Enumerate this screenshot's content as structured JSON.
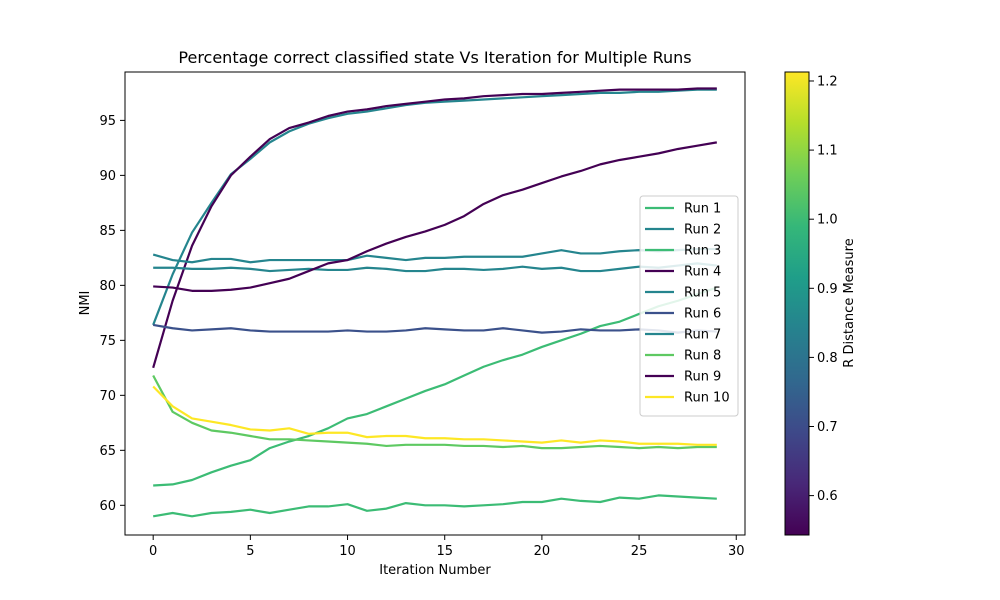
{
  "chart_data": {
    "type": "line",
    "title": "Percentage correct classified state Vs Iteration for Multiple Runs",
    "xlabel": "Iteration Number",
    "ylabel": "NMI",
    "xlim": [
      -1.45,
      30.45
    ],
    "ylim": [
      57.3,
      99.4
    ],
    "xticks": [
      "0",
      "5",
      "10",
      "15",
      "20",
      "25",
      "30"
    ],
    "yticks": [
      "60",
      "65",
      "70",
      "75",
      "80",
      "85",
      "90",
      "95"
    ],
    "grid": false,
    "legend_position": "center-right",
    "colorbar": {
      "label": "R Distance Measure",
      "min": 0.543,
      "max": 1.213,
      "ticks": [
        "0.6",
        "0.7",
        "0.8",
        "0.9",
        "1.0",
        "1.1",
        "1.2"
      ]
    },
    "x": [
      0,
      1,
      2,
      3,
      4,
      5,
      6,
      7,
      8,
      9,
      10,
      11,
      12,
      13,
      14,
      15,
      16,
      17,
      18,
      19,
      20,
      21,
      22,
      23,
      24,
      25,
      26,
      27,
      28,
      29
    ],
    "series": [
      {
        "name": "Run 1",
        "color": "#3cbc75",
        "values": [
          59.0,
          59.3,
          59.0,
          59.3,
          59.4,
          59.6,
          59.3,
          59.6,
          59.9,
          59.9,
          60.1,
          59.5,
          59.7,
          60.2,
          60.0,
          60.0,
          59.9,
          60.0,
          60.1,
          60.3,
          60.3,
          60.6,
          60.4,
          60.3,
          60.7,
          60.6,
          60.9,
          60.8,
          60.7,
          60.6
        ]
      },
      {
        "name": "Run 2",
        "color": "#25858e",
        "values": [
          76.4,
          81.0,
          84.8,
          87.5,
          90.1,
          91.5,
          93.0,
          94.0,
          94.7,
          95.2,
          95.6,
          95.8,
          96.1,
          96.4,
          96.6,
          96.7,
          96.8,
          96.9,
          97.0,
          97.1,
          97.2,
          97.3,
          97.4,
          97.5,
          97.5,
          97.6,
          97.6,
          97.7,
          97.8,
          97.8
        ]
      },
      {
        "name": "Run 3",
        "color": "#3cbc75",
        "values": [
          61.8,
          61.9,
          62.3,
          63.0,
          63.6,
          64.1,
          65.2,
          65.8,
          66.3,
          67.0,
          67.9,
          68.3,
          69.0,
          69.7,
          70.4,
          71.0,
          71.8,
          72.6,
          73.2,
          73.7,
          74.4,
          75.0,
          75.6,
          76.3,
          76.7,
          77.4,
          78.1,
          78.6,
          79.2,
          79.8
        ]
      },
      {
        "name": "Run 4",
        "color": "#440154",
        "values": [
          72.5,
          78.6,
          83.6,
          87.2,
          90.0,
          91.7,
          93.3,
          94.3,
          94.8,
          95.4,
          95.8,
          96.0,
          96.3,
          96.5,
          96.7,
          96.9,
          97.0,
          97.2,
          97.3,
          97.4,
          97.4,
          97.5,
          97.6,
          97.7,
          97.8,
          97.8,
          97.8,
          97.8,
          97.9,
          97.9
        ]
      },
      {
        "name": "Run 5",
        "color": "#25858e",
        "values": [
          82.8,
          82.3,
          82.1,
          82.4,
          82.4,
          82.1,
          82.3,
          82.3,
          82.3,
          82.3,
          82.3,
          82.7,
          82.5,
          82.3,
          82.5,
          82.5,
          82.6,
          82.6,
          82.6,
          82.6,
          82.9,
          83.2,
          82.9,
          82.9,
          83.1,
          83.2,
          83.1,
          83.2,
          83.3,
          83.3
        ]
      },
      {
        "name": "Run 6",
        "color": "#3b518b",
        "values": [
          76.4,
          76.1,
          75.9,
          76.0,
          76.1,
          75.9,
          75.8,
          75.8,
          75.8,
          75.8,
          75.9,
          75.8,
          75.8,
          75.9,
          76.1,
          76.0,
          75.9,
          75.9,
          76.1,
          75.9,
          75.7,
          75.8,
          76.0,
          75.9,
          75.9,
          76.0,
          75.9,
          75.7,
          75.9,
          75.8
        ]
      },
      {
        "name": "Run 7",
        "color": "#25858e",
        "values": [
          81.6,
          81.6,
          81.5,
          81.5,
          81.6,
          81.5,
          81.3,
          81.4,
          81.5,
          81.4,
          81.4,
          81.6,
          81.5,
          81.3,
          81.3,
          81.5,
          81.5,
          81.4,
          81.5,
          81.7,
          81.5,
          81.6,
          81.3,
          81.3,
          81.5,
          81.7,
          81.6,
          81.8,
          82.0,
          81.8
        ]
      },
      {
        "name": "Run 8",
        "color": "#5ec962",
        "values": [
          71.8,
          68.5,
          67.5,
          66.8,
          66.6,
          66.3,
          66.0,
          66.0,
          65.9,
          65.8,
          65.7,
          65.6,
          65.4,
          65.5,
          65.5,
          65.5,
          65.4,
          65.4,
          65.3,
          65.4,
          65.2,
          65.2,
          65.3,
          65.4,
          65.3,
          65.2,
          65.3,
          65.2,
          65.3,
          65.3
        ]
      },
      {
        "name": "Run 9",
        "color": "#440154",
        "values": [
          79.9,
          79.8,
          79.5,
          79.5,
          79.6,
          79.8,
          80.2,
          80.6,
          81.3,
          82.0,
          82.3,
          83.1,
          83.8,
          84.4,
          84.9,
          85.5,
          86.3,
          87.4,
          88.2,
          88.7,
          89.3,
          89.9,
          90.4,
          91.0,
          91.4,
          91.7,
          92.0,
          92.4,
          92.7,
          93.0
        ]
      },
      {
        "name": "Run 10",
        "color": "#fde725",
        "values": [
          70.8,
          69.0,
          67.9,
          67.6,
          67.3,
          66.9,
          66.8,
          67.0,
          66.5,
          66.6,
          66.6,
          66.2,
          66.3,
          66.3,
          66.1,
          66.1,
          66.0,
          66.0,
          65.9,
          65.8,
          65.7,
          65.9,
          65.7,
          65.9,
          65.8,
          65.6,
          65.6,
          65.6,
          65.5,
          65.5
        ]
      }
    ]
  }
}
